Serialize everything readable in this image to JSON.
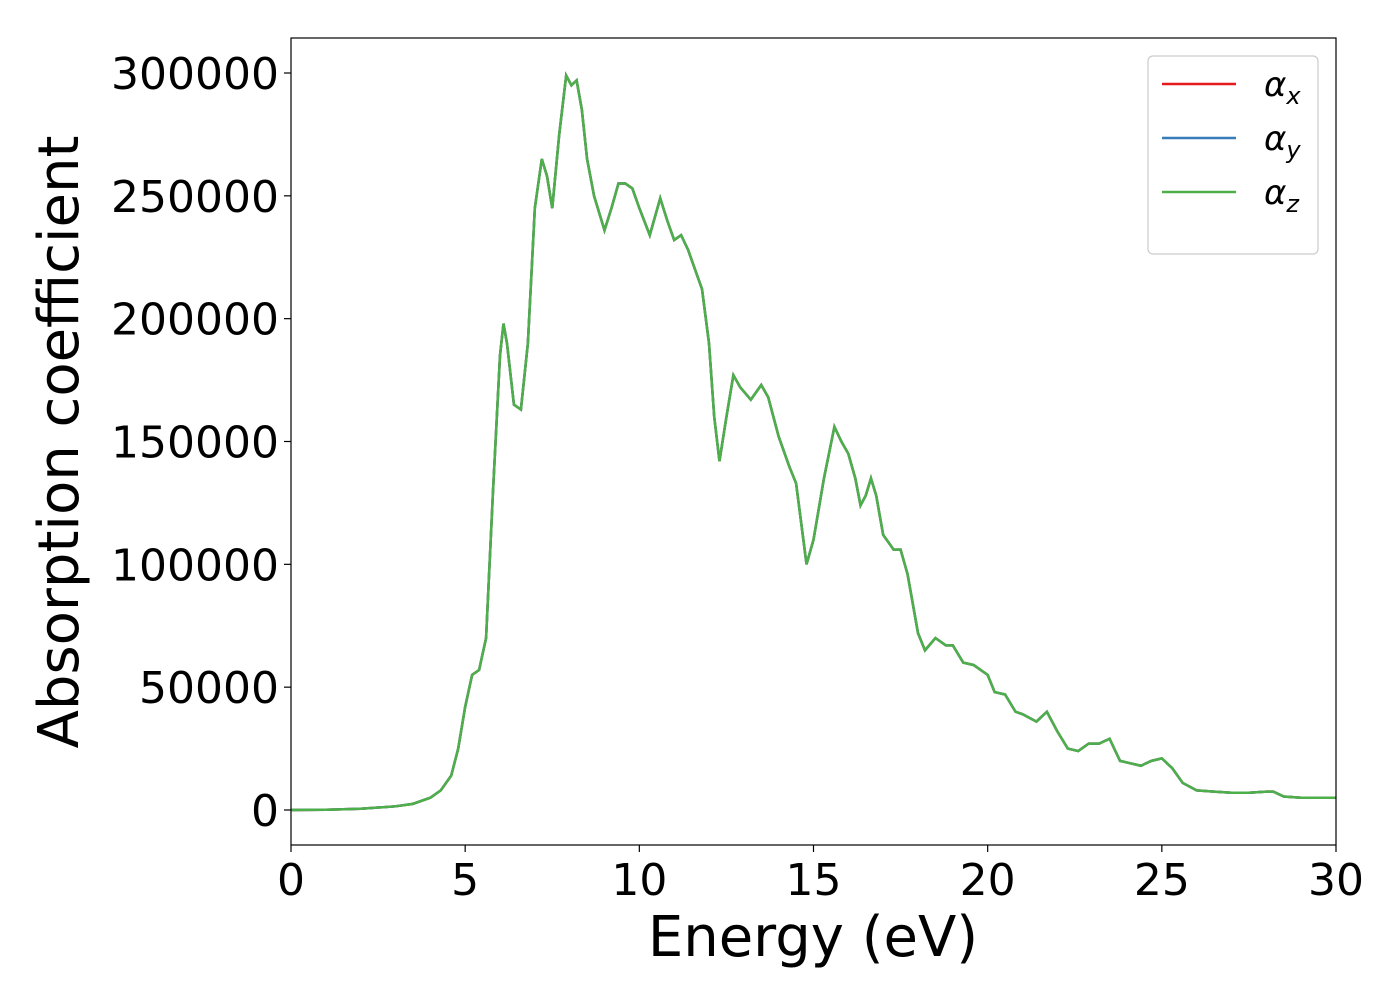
{
  "chart_data": {
    "type": "line",
    "xlabel": "Energy (eV)",
    "ylabel": "Absorption coefficient",
    "x": [
      0,
      1,
      2,
      3,
      3.5,
      4,
      4.3,
      4.6,
      4.8,
      5.0,
      5.2,
      5.4,
      5.6,
      5.8,
      6.0,
      6.1,
      6.2,
      6.4,
      6.6,
      6.8,
      7.0,
      7.2,
      7.35,
      7.5,
      7.7,
      7.9,
      8.05,
      8.2,
      8.35,
      8.5,
      8.7,
      9.0,
      9.2,
      9.4,
      9.6,
      9.8,
      10.0,
      10.3,
      10.6,
      10.8,
      11.0,
      11.2,
      11.4,
      11.6,
      11.8,
      12.0,
      12.15,
      12.3,
      12.5,
      12.7,
      12.9,
      13.2,
      13.5,
      13.7,
      14.0,
      14.3,
      14.5,
      14.8,
      15.0,
      15.3,
      15.6,
      15.8,
      16.0,
      16.2,
      16.35,
      16.5,
      16.65,
      16.8,
      17.0,
      17.3,
      17.5,
      17.7,
      18.0,
      18.2,
      18.5,
      18.8,
      19.0,
      19.3,
      19.6,
      20.0,
      20.2,
      20.5,
      20.8,
      21.0,
      21.4,
      21.7,
      22.0,
      22.3,
      22.6,
      22.9,
      23.2,
      23.5,
      23.8,
      24.1,
      24.4,
      24.7,
      25.0,
      25.3,
      25.6,
      26.0,
      26.5,
      27.0,
      27.5,
      28.0,
      28.2,
      28.5,
      29.0,
      29.5,
      30.0
    ],
    "series": [
      {
        "name": "αx",
        "color": "#e41a1c",
        "values": [
          0,
          100,
          500,
          1500,
          2500,
          5000,
          8000,
          14000,
          25000,
          42000,
          55000,
          57000,
          70000,
          130000,
          185000,
          198000,
          190000,
          165000,
          163000,
          190000,
          245000,
          265000,
          258000,
          245000,
          275000,
          299000,
          295000,
          297000,
          285000,
          265000,
          250000,
          236000,
          245000,
          255000,
          255000,
          253000,
          245000,
          234000,
          249000,
          240000,
          232000,
          234000,
          228000,
          220000,
          212000,
          190000,
          160000,
          142000,
          160000,
          177000,
          172000,
          167000,
          173000,
          168000,
          152000,
          140000,
          133000,
          100000,
          110000,
          135000,
          156000,
          150000,
          145000,
          135000,
          124000,
          128000,
          135000,
          128000,
          112000,
          106000,
          106000,
          96000,
          72000,
          65000,
          70000,
          67000,
          67000,
          60000,
          59000,
          55000,
          48000,
          47000,
          40000,
          39000,
          36000,
          40000,
          32000,
          25000,
          24000,
          27000,
          27000,
          29000,
          20000,
          19000,
          18000,
          20000,
          21000,
          17000,
          11000,
          8000,
          7500,
          7000,
          7000,
          7500,
          7500,
          5500,
          5000,
          5000,
          5000
        ]
      },
      {
        "name": "αy",
        "color": "#377eb8",
        "values": [
          0,
          100,
          500,
          1500,
          2500,
          5000,
          8000,
          14000,
          25000,
          42000,
          55000,
          57000,
          70000,
          130000,
          185000,
          198000,
          190000,
          165000,
          163000,
          190000,
          245000,
          265000,
          258000,
          245000,
          275000,
          299000,
          295000,
          297000,
          285000,
          265000,
          250000,
          236000,
          245000,
          255000,
          255000,
          253000,
          245000,
          234000,
          249000,
          240000,
          232000,
          234000,
          228000,
          220000,
          212000,
          190000,
          160000,
          142000,
          160000,
          177000,
          172000,
          167000,
          173000,
          168000,
          152000,
          140000,
          133000,
          100000,
          110000,
          135000,
          156000,
          150000,
          145000,
          135000,
          124000,
          128000,
          135000,
          128000,
          112000,
          106000,
          106000,
          96000,
          72000,
          65000,
          70000,
          67000,
          67000,
          60000,
          59000,
          55000,
          48000,
          47000,
          40000,
          39000,
          36000,
          40000,
          32000,
          25000,
          24000,
          27000,
          27000,
          29000,
          20000,
          19000,
          18000,
          20000,
          21000,
          17000,
          11000,
          8000,
          7500,
          7000,
          7000,
          7500,
          7500,
          5500,
          5000,
          5000,
          5000
        ]
      },
      {
        "name": "αz",
        "color": "#4daf4a",
        "values": [
          0,
          100,
          500,
          1500,
          2500,
          5000,
          8000,
          14000,
          25000,
          42000,
          55000,
          57000,
          70000,
          130000,
          185000,
          198000,
          190000,
          165000,
          163000,
          190000,
          245000,
          265000,
          258000,
          245000,
          275000,
          299000,
          295000,
          297000,
          285000,
          265000,
          250000,
          236000,
          245000,
          255000,
          255000,
          253000,
          245000,
          234000,
          249000,
          240000,
          232000,
          234000,
          228000,
          220000,
          212000,
          190000,
          160000,
          142000,
          160000,
          177000,
          172000,
          167000,
          173000,
          168000,
          152000,
          140000,
          133000,
          100000,
          110000,
          135000,
          156000,
          150000,
          145000,
          135000,
          124000,
          128000,
          135000,
          128000,
          112000,
          106000,
          106000,
          96000,
          72000,
          65000,
          70000,
          67000,
          67000,
          60000,
          59000,
          55000,
          48000,
          47000,
          40000,
          39000,
          36000,
          40000,
          32000,
          25000,
          24000,
          27000,
          27000,
          29000,
          20000,
          19000,
          18000,
          20000,
          21000,
          17000,
          11000,
          8000,
          7500,
          7000,
          7000,
          7500,
          7500,
          5500,
          5000,
          5000,
          5000
        ]
      }
    ],
    "xlim": [
      0,
      30
    ],
    "xticks": [
      0,
      5,
      10,
      15,
      20,
      25,
      30
    ],
    "ylim": [
      -14250,
      314250
    ],
    "yticks": [
      0,
      50000,
      100000,
      150000,
      200000,
      250000,
      300000
    ],
    "legend": "upper right"
  }
}
